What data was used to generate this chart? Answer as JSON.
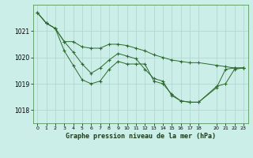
{
  "title": "Graphe pression niveau de la mer (hPa)",
  "background_color": "#cceee8",
  "grid_color": "#aad4cc",
  "line_color": "#2d6a2d",
  "xlim": [
    -0.5,
    23.5
  ],
  "ylim": [
    1017.5,
    1022.0
  ],
  "yticks": [
    1018,
    1019,
    1020,
    1021
  ],
  "xticks": [
    0,
    1,
    2,
    3,
    4,
    5,
    6,
    7,
    8,
    9,
    10,
    11,
    12,
    13,
    14,
    15,
    16,
    17,
    18,
    20,
    21,
    22,
    23
  ],
  "line1_x": [
    0,
    1,
    2,
    3,
    4,
    5,
    6,
    7,
    8,
    9,
    10,
    11,
    12,
    13,
    14,
    15,
    16,
    17,
    18,
    20,
    21,
    22,
    23
  ],
  "line1_y": [
    1021.7,
    1021.3,
    1021.1,
    1020.25,
    1019.7,
    1019.15,
    1019.0,
    1019.1,
    1019.55,
    1019.85,
    1019.75,
    1019.75,
    1019.75,
    1019.1,
    1019.0,
    1018.6,
    1018.35,
    1018.3,
    1018.3,
    1018.9,
    1019.0,
    1019.55,
    1019.6
  ],
  "line2_x": [
    0,
    1,
    2,
    3,
    4,
    5,
    6,
    7,
    8,
    9,
    10,
    11,
    12,
    13,
    14,
    15,
    16,
    17,
    18,
    20,
    21,
    22,
    23
  ],
  "line2_y": [
    1021.7,
    1021.3,
    1021.1,
    1020.6,
    1020.2,
    1019.75,
    1019.4,
    1019.6,
    1019.9,
    1020.15,
    1020.05,
    1019.95,
    1019.55,
    1019.2,
    1019.1,
    1018.55,
    1018.35,
    1018.3,
    1018.3,
    1018.85,
    1019.55,
    1019.6,
    1019.6
  ],
  "line3_x": [
    0,
    1,
    2,
    3,
    4,
    5,
    6,
    7,
    8,
    9,
    10,
    11,
    12,
    13,
    14,
    15,
    16,
    17,
    18,
    20,
    21,
    22,
    23
  ],
  "line3_y": [
    1021.7,
    1021.3,
    1021.1,
    1020.6,
    1020.6,
    1020.4,
    1020.35,
    1020.35,
    1020.5,
    1020.5,
    1020.45,
    1020.35,
    1020.25,
    1020.1,
    1020.0,
    1019.9,
    1019.85,
    1019.8,
    1019.8,
    1019.7,
    1019.65,
    1019.6,
    1019.6
  ]
}
